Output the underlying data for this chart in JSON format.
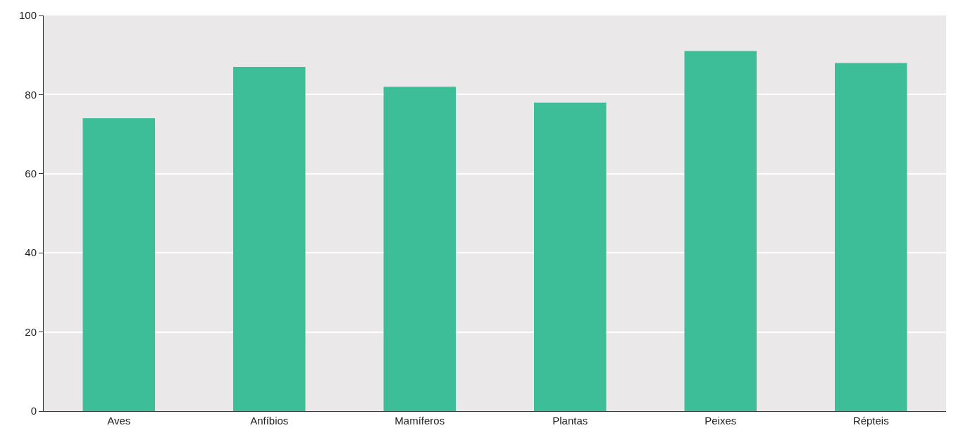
{
  "chart_data": {
    "type": "bar",
    "categories": [
      "Aves",
      "Anfíbios",
      "Mamíferos",
      "Plantas",
      "Peixes",
      "Répteis"
    ],
    "values": [
      74,
      87,
      82,
      78,
      91,
      88
    ],
    "color": "#3dbd98",
    "ylim": [
      0,
      100
    ],
    "yticks": [
      0,
      20,
      40,
      60,
      80,
      100
    ],
    "grid": "y"
  }
}
